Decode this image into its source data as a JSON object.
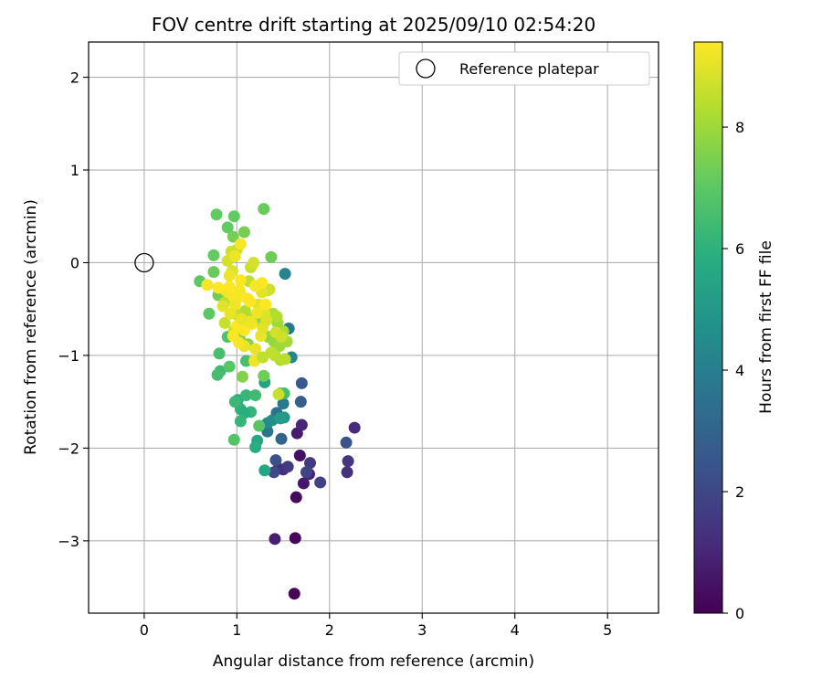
{
  "chart_data": {
    "type": "scatter",
    "title": "FOV centre drift starting at 2025/09/10 02:54:20",
    "xlabel": "Angular distance from reference (arcmin)",
    "ylabel": "Rotation from reference (arcmin)",
    "xlim": [
      -0.6,
      5.55
    ],
    "ylim": [
      -3.78,
      2.38
    ],
    "xticks": [
      0,
      1,
      2,
      3,
      4,
      5
    ],
    "xtick_labels": [
      "0",
      "1",
      "2",
      "3",
      "4",
      "5"
    ],
    "yticks": [
      2,
      1,
      0,
      -1,
      -2,
      -3
    ],
    "ytick_labels": [
      "2",
      "1",
      "0",
      "−1",
      "−2",
      "−3"
    ],
    "grid": true,
    "legend": {
      "placement": "top-right",
      "entries": [
        "Reference platepar"
      ]
    },
    "reference_point": {
      "x": 0,
      "y": 0,
      "label": "Reference platepar"
    },
    "colorbar": {
      "label": "Hours from first FF file",
      "colormap": "viridis",
      "range": [
        0,
        9.4
      ],
      "ticks": [
        0,
        2,
        4,
        6,
        8
      ],
      "tick_labels": [
        "0",
        "2",
        "4",
        "6",
        "8"
      ]
    },
    "series": [
      {
        "points": [
          [
            1.62,
            -3.57,
            0.1
          ],
          [
            1.63,
            -2.97,
            0.2
          ],
          [
            1.64,
            -2.53,
            0.3
          ],
          [
            1.41,
            -2.98,
            0.8
          ],
          [
            1.68,
            -2.08,
            0.4
          ],
          [
            1.72,
            -2.38,
            0.6
          ],
          [
            1.78,
            -2.28,
            0.9
          ],
          [
            1.65,
            -1.84,
            0.7
          ],
          [
            1.45,
            -2.22,
            1.3
          ],
          [
            1.5,
            -2.23,
            1.2
          ],
          [
            1.55,
            -2.2,
            1.6
          ],
          [
            1.7,
            -1.75,
            1.0
          ],
          [
            2.27,
            -1.78,
            1.1
          ],
          [
            2.19,
            -2.26,
            1.3
          ],
          [
            2.2,
            -2.14,
            1.5
          ],
          [
            1.79,
            -2.16,
            1.6
          ],
          [
            1.9,
            -2.37,
            1.8
          ],
          [
            1.75,
            -2.26,
            1.9
          ],
          [
            1.42,
            -2.13,
            2.3
          ],
          [
            1.4,
            -2.26,
            2.1
          ],
          [
            2.18,
            -1.94,
            2.4
          ],
          [
            1.7,
            -1.3,
            2.6
          ],
          [
            1.69,
            -1.5,
            2.8
          ],
          [
            1.48,
            -1.9,
            3.0
          ],
          [
            1.43,
            -1.62,
            3.5
          ],
          [
            1.33,
            -1.82,
            3.6
          ],
          [
            1.5,
            -1.52,
            3.8
          ],
          [
            1.56,
            -0.71,
            3.8
          ],
          [
            1.52,
            -0.12,
            4.2
          ],
          [
            1.59,
            -1.02,
            4.3
          ],
          [
            1.33,
            -1.73,
            4.4
          ],
          [
            1.38,
            -1.7,
            4.6
          ],
          [
            1.51,
            -1.67,
            5.0
          ],
          [
            1.47,
            -1.68,
            5.2
          ],
          [
            1.3,
            -1.29,
            5.4
          ],
          [
            1.22,
            -1.92,
            5.6
          ],
          [
            1.3,
            -2.24,
            5.6
          ],
          [
            1.2,
            -1.99,
            5.8
          ],
          [
            1.01,
            -1.48,
            5.8
          ],
          [
            1.04,
            -1.58,
            6.0
          ],
          [
            1.1,
            -1.43,
            6.2
          ],
          [
            1.15,
            -1.61,
            6.2
          ],
          [
            1.08,
            -1.62,
            5.9
          ],
          [
            1.04,
            -1.71,
            6.2
          ],
          [
            1.2,
            -1.43,
            6.4
          ],
          [
            0.98,
            -1.5,
            6.3
          ],
          [
            1.51,
            -1.41,
            6.5
          ],
          [
            1.47,
            -1.41,
            6.6
          ],
          [
            1.1,
            -1.06,
            6.6
          ],
          [
            0.97,
            -1.91,
            6.8
          ],
          [
            1.24,
            -1.76,
            6.9
          ],
          [
            0.82,
            -1.17,
            6.4
          ],
          [
            0.79,
            -1.21,
            6.5
          ],
          [
            0.9,
            -0.8,
            6.7
          ],
          [
            0.81,
            -0.98,
            6.6
          ],
          [
            0.92,
            -1.12,
            6.9
          ],
          [
            0.7,
            -0.55,
            7.0
          ],
          [
            0.6,
            -0.2,
            7.0
          ],
          [
            0.78,
            0.52,
            7.1
          ],
          [
            1.29,
            0.58,
            7.2
          ],
          [
            0.97,
            0.5,
            7.1
          ],
          [
            0.9,
            0.38,
            7.1
          ],
          [
            0.75,
            0.08,
            7.1
          ],
          [
            0.75,
            -0.1,
            7.2
          ],
          [
            1.37,
            0.06,
            7.3
          ],
          [
            1.08,
            0.33,
            7.4
          ],
          [
            0.96,
            0.28,
            7.4
          ],
          [
            0.8,
            -0.35,
            7.3
          ],
          [
            1.03,
            -0.82,
            7.5
          ],
          [
            1.06,
            -1.23,
            7.6
          ],
          [
            1.29,
            -1.22,
            7.3
          ],
          [
            1.12,
            -0.88,
            7.6
          ],
          [
            1.24,
            -0.62,
            7.8
          ],
          [
            1.34,
            -0.8,
            7.8
          ],
          [
            1.4,
            -0.85,
            7.9
          ],
          [
            1.46,
            -0.9,
            8.0
          ],
          [
            1.54,
            -0.85,
            8.1
          ],
          [
            1.5,
            -0.74,
            8.2
          ],
          [
            1.44,
            -0.65,
            8.0
          ],
          [
            1.39,
            -0.55,
            8.2
          ],
          [
            1.43,
            -0.58,
            8.3
          ],
          [
            1.47,
            -1.05,
            8.3
          ],
          [
            1.52,
            -1.04,
            8.4
          ],
          [
            1.41,
            -1.0,
            8.4
          ],
          [
            1.16,
            -0.6,
            8.3
          ],
          [
            1.09,
            -0.52,
            8.3
          ],
          [
            1.0,
            -0.56,
            8.5
          ],
          [
            0.87,
            -0.43,
            8.5
          ],
          [
            0.87,
            -0.65,
            8.6
          ],
          [
            0.97,
            -0.73,
            8.6
          ],
          [
            1.13,
            -0.2,
            8.5
          ],
          [
            1.15,
            -0.05,
            8.6
          ],
          [
            1.33,
            -0.3,
            8.7
          ],
          [
            1.35,
            -0.29,
            8.7
          ],
          [
            1.0,
            0.14,
            8.6
          ],
          [
            0.94,
            0.12,
            8.7
          ],
          [
            0.9,
            0.02,
            8.8
          ],
          [
            0.95,
            -0.09,
            8.9
          ],
          [
            1.18,
            0.0,
            8.8
          ],
          [
            1.3,
            -0.55,
            8.9
          ],
          [
            1.27,
            -0.32,
            9.0
          ],
          [
            1.23,
            -0.45,
            9.0
          ],
          [
            1.26,
            -0.79,
            9.1
          ],
          [
            1.2,
            -0.93,
            9.1
          ],
          [
            1.08,
            -0.9,
            9.1
          ],
          [
            1.19,
            -1.06,
            9.2
          ],
          [
            0.98,
            -0.45,
            9.2
          ],
          [
            0.88,
            -0.3,
            9.2
          ],
          [
            0.95,
            -0.35,
            9.3
          ],
          [
            1.05,
            -0.36,
            9.3
          ],
          [
            1.03,
            -0.3,
            9.3
          ],
          [
            1.14,
            -0.42,
            9.4
          ],
          [
            1.16,
            -0.66,
            9.3
          ],
          [
            1.08,
            -0.73,
            9.4
          ],
          [
            1.0,
            -0.68,
            9.4
          ],
          [
            0.96,
            -0.79,
            9.4
          ],
          [
            1.02,
            -0.86,
            9.3
          ],
          [
            0.68,
            -0.24,
            9.3
          ],
          [
            0.8,
            -0.27,
            9.4
          ],
          [
            0.92,
            -0.26,
            9.4
          ],
          [
            1.04,
            -0.19,
            9.4
          ],
          [
            1.12,
            -0.39,
            9.4
          ],
          [
            1.27,
            -0.22,
            9.4
          ],
          [
            1.31,
            -0.45,
            9.4
          ],
          [
            1.04,
            0.2,
            9.3
          ],
          [
            0.98,
            0.07,
            9.2
          ],
          [
            0.92,
            -0.14,
            9.2
          ],
          [
            1.2,
            -0.25,
            9.3
          ],
          [
            1.22,
            -0.54,
            9.2
          ],
          [
            1.14,
            -0.64,
            9.2
          ],
          [
            1.05,
            -0.61,
            9.1
          ],
          [
            0.93,
            -0.55,
            9.1
          ],
          [
            0.85,
            -0.47,
            9.0
          ],
          [
            1.28,
            -0.7,
            9.0
          ],
          [
            1.32,
            -0.62,
            8.9
          ],
          [
            1.42,
            -0.75,
            8.8
          ],
          [
            1.48,
            -0.8,
            8.7
          ],
          [
            1.45,
            -1.42,
            8.6
          ],
          [
            1.37,
            -0.97,
            8.5
          ],
          [
            1.28,
            -1.02,
            8.5
          ]
        ]
      }
    ]
  }
}
